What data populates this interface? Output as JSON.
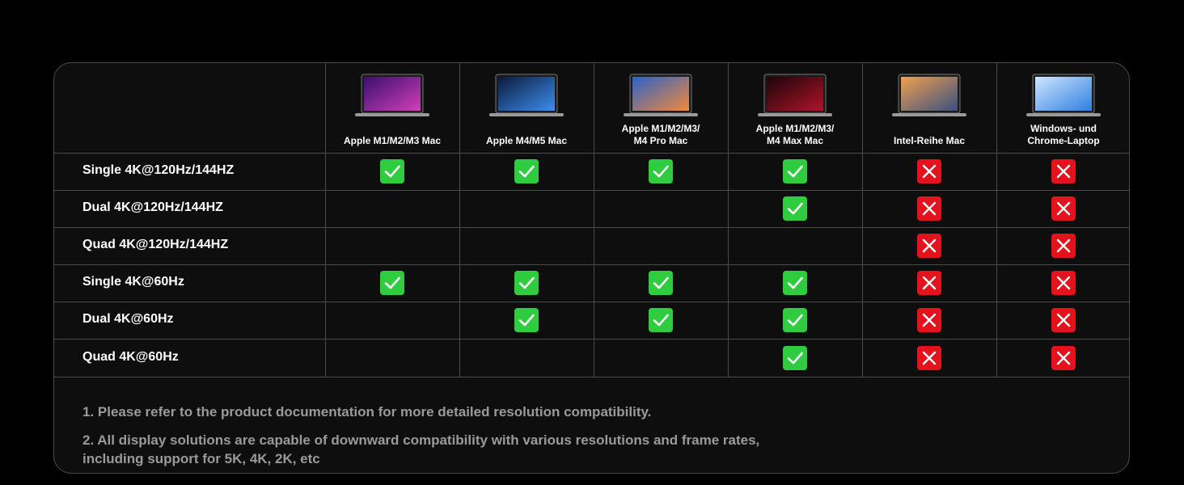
{
  "table": {
    "columns": [
      "Apple M1/M2/M3 Mac",
      "Apple M4/M5 Mac",
      "Apple M1/M2/M3/\nM4 Pro Mac",
      "Apple M1/M2/M3/\nM4 Max Mac",
      "Intel-Reihe Mac",
      "Windows- und\nChrome-Laptop"
    ],
    "rows": [
      {
        "label": "Single 4K@120Hz/144HZ",
        "cells": [
          true,
          true,
          true,
          true,
          false,
          false
        ]
      },
      {
        "label": "Dual 4K@120Hz/144HZ",
        "cells": [
          null,
          null,
          null,
          true,
          false,
          false
        ]
      },
      {
        "label": "Quad 4K@120Hz/144HZ",
        "cells": [
          null,
          null,
          null,
          null,
          false,
          false
        ]
      },
      {
        "label": "Single 4K@60Hz",
        "cells": [
          true,
          true,
          true,
          true,
          false,
          false
        ]
      },
      {
        "label": "Dual 4K@60Hz",
        "cells": [
          null,
          true,
          true,
          true,
          false,
          false
        ]
      },
      {
        "label": "Quad 4K@60Hz",
        "cells": [
          null,
          null,
          null,
          true,
          false,
          false
        ]
      }
    ]
  },
  "notes": [
    "1.  Please refer to the product documentation for more detailed resolution compatibility.",
    "2.  All display solutions are capable of downward compatibility with various resolutions and frame rates,\nincluding support for 5K, 4K, 2K, etc"
  ]
}
